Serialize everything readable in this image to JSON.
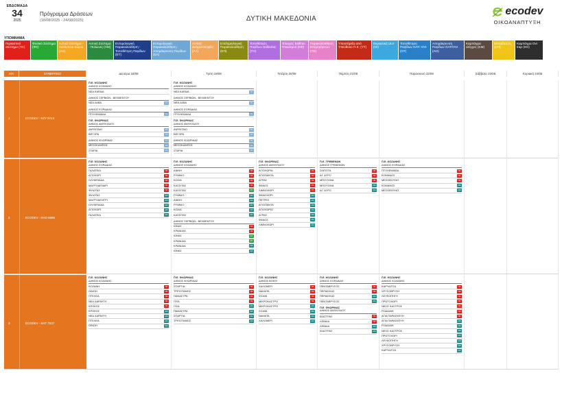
{
  "header": {
    "week_label": "ΕΒΔΟΜΑΔΑ",
    "week_number": "34",
    "year": "2025",
    "program_title": "Πρόγραμμα Δράσεων",
    "program_dates": "(18/08/2025 - 24/08/2025)",
    "region": "ΔΥΤΙΚΗ ΜΑΚΕΔΟΝΙΑ",
    "logo_word": "ecodev",
    "logo_subtitle": "ΟΙΚΟΑΝΑΠΤΥΞΗ",
    "logo_color": "#8dc63f"
  },
  "legend": {
    "title": "ΥΠΟΜΝΗΜΑ",
    "items": [
      {
        "code": "ΠΣ",
        "label": "Περιαστικό σύστημα (ΠΣ)",
        "color": "#e0201b"
      },
      {
        "code": "ΦΣ",
        "label": "Φυσικό Σύστημα (ΦΣ)",
        "color": "#2aa836"
      },
      {
        "code": "ΑΧ",
        "label": "Αστικό Σύστημα - Ακάλυπτοι Χώροι (ΑΧ)",
        "color": "#f5a623"
      },
      {
        "code": "ΑΜ",
        "label": "Αστικό Σύστημα - Πυλώνες (ΑΜ)",
        "color": "#2b8a3e"
      },
      {
        "code": "ΕΤ",
        "label": "Εντομολογική Παρακολούθηση - Τοποθέτηση Παγίδων (ΕΤ)",
        "color": "#1f3e8c"
      },
      {
        "code": "ΕΑ",
        "label": "Εντομολογική Παρακολούθηση - Απομάκρυνση Παγίδων (ΕΑ)",
        "color": "#6fa8d6"
      },
      {
        "code": "ΛΑ",
        "label": "Λοιπές Δειγματοληψίες (ΛΑ)",
        "color": "#f2a65a"
      },
      {
        "code": "ΕΠ",
        "label": "Επιδημιολογική Παρακολούθηση (ΕΠ)",
        "color": "#8a8a10"
      },
      {
        "code": "ΤΟ",
        "label": "Τοποθέτηση Παγίδων Ωοθεσίας (ΤΟ)",
        "color": "#b06ee0"
      },
      {
        "code": "ΚΦ",
        "label": "Έλεγχος Εκθέτει Ψεκασμού (ΚΦ)",
        "color": "#d07ed9"
      },
      {
        "code": "ΤΕ",
        "label": "Παρακολούθηση Επιχειρήσεων (ΤΕ)",
        "color": "#e882c8"
      },
      {
        "code": "ΥΤ",
        "label": "Υποστήριξη από Υπεύθυνο Π.Ε. (ΥΤ)",
        "color": "#c42b16"
      },
      {
        "code": "ΟΙ",
        "label": "Εκρηκτική ULV (ΟΙ)",
        "color": "#3ba9e0"
      },
      {
        "code": "ΟΤ",
        "label": "Τοποθέτηση Παγίδων GAT/ OVI (ΟΤ)",
        "color": "#2980c9"
      },
      {
        "code": "ΑΟ",
        "label": "Απομάκρυνση Παγίδων GAT/OVI (ΑΟ)",
        "color": "#3d5fa0"
      },
      {
        "code": "ΚΜ",
        "label": "Καμπάγμα ελέγχος (ΚΜ)",
        "color": "#5a4a42"
      },
      {
        "code": "ΚΠ",
        "label": "Εκπαίδευση (ΚΠ)",
        "color": "#f0c419"
      },
      {
        "code": "ΚΟ",
        "label": "Καμπάγμα Ovi trap (ΚΟ)",
        "color": "#2d2d2d"
      }
    ]
  },
  "badges": {
    "ΠΣ": "#e0201b",
    "ΑΜ": "#1e8a8a",
    "ΦΣ": "#2aa836",
    "ΤΑ": "#7fb0dc"
  },
  "table": {
    "headers": [
      "Α/Α",
      "ΣΥΝΕΡΓΕΙΟ",
      "Δευτέρα 18/08",
      "Τρίτη 19/08",
      "Τετάρτη 20/08",
      "Πέμπτη 21/08",
      "Παρασκευή 22/08",
      "Σάββατο 23/08",
      "Κυριακή 24/08"
    ],
    "rows": [
      {
        "aa": "1",
        "team": "ECODEV - ΚΖΥ 9744",
        "days": [
          [
            {
              "h1": "Π.Ε. ΚΟΖΑΝΗΣ",
              "h2": "ΔΗΜΟΣ ΚΟΖΑΝΗΣ",
              "items": [
                {
                  "t": "ΝΕΑ ΚΑΡΔΙΑ",
                  "b": ""
                },
                {
                  "t": "ΔΗΜΟΣ ΣΕΡΒΙΩΝ - ΒΕΛΒΕΝΤΟΥ",
                  "b": "",
                  "sub": true
                },
                {
                  "t": "ΝΕΑ ΛΑΒΑ",
                  "b": "ΤΑ"
                },
                {
                  "t": "ΔΗΜΟΣ ΕΟΡΔΑΙΑΣ",
                  "b": "",
                  "sub": true
                },
                {
                  "t": "ΠΤΟΛΕΜΑΪΔΑ",
                  "b": "ΤΑ"
                }
              ]
            },
            {
              "h1": "Π.Ε. ΦΛΩΡΙΝΑΣ",
              "h2": "ΔΗΜΟΣ ΑΜΥΝΤΑΙΟΥ",
              "items": [
                {
                  "t": "ΑΜΥΝΤΑΙΟ",
                  "b": "ΤΑ"
                },
                {
                  "t": "ΒΕΓΟΡΑ",
                  "b": "ΤΑ"
                },
                {
                  "t": "ΔΗΜΟΣ ΦΛΩΡΙΝΑΣ",
                  "b": "ΤΑ",
                  "sub": true
                },
                {
                  "t": "ΜΕΣΟΚΑΜΠΟΣ",
                  "b": "ΤΑ"
                },
                {
                  "t": "ΣΤΑΡΙΑ",
                  "b": "ΤΑ"
                }
              ]
            }
          ],
          [
            {
              "h1": "Π.Ε. ΚΟΖΑΝΗΣ",
              "h2": "ΔΗΜΟΣ ΚΟΖΑΝΗΣ",
              "items": [
                {
                  "t": "ΝΕΑ ΚΑΡΔΙΑ",
                  "b": "ΤΑ"
                },
                {
                  "t": "ΔΗΜΟΣ ΣΕΡΒΙΩΝ - ΒΕΛΒΕΝΤΟΥ",
                  "b": "",
                  "sub": true
                },
                {
                  "t": "ΝΕΑ ΛΑΒΑ",
                  "b": "ΤΑ"
                },
                {
                  "t": "ΔΗΜΟΣ ΕΟΡΔΑΙΑΣ",
                  "b": "",
                  "sub": true
                },
                {
                  "t": "ΠΤΟΛΕΜΑΪΔΑ",
                  "b": "ΤΑ"
                }
              ]
            },
            {
              "h1": "Π.Ε. ΦΛΩΡΙΝΑΣ",
              "h2": "ΔΗΜΟΣ ΑΜΥΝΤΑΙΟΥ",
              "items": [
                {
                  "t": "ΑΜΥΝΤΑΙΟ",
                  "b": "ΤΑ"
                },
                {
                  "t": "ΒΕΓΟΡΑ",
                  "b": "ΤΑ"
                },
                {
                  "t": "ΔΗΜΟΣ ΦΛΩΡΙΝΑΣ",
                  "b": "ΤΑ",
                  "sub": true
                },
                {
                  "t": "ΜΕΣΟΚΑΜΠΟΣ",
                  "b": "ΤΑ"
                },
                {
                  "t": "ΣΤΑΡΙΑ",
                  "b": "ΤΑ"
                }
              ]
            }
          ],
          [],
          [],
          [],
          [],
          []
        ]
      },
      {
        "aa": "2",
        "team": "ECODEV - ΚΗΟ 8695",
        "days": [
          [
            {
              "h1": "Π.Ε. ΚΟΖΑΝΗΣ",
              "h2": "ΔΗΜΟΣ ΕΟΡΔΑΙΑΣ",
              "items": [
                {
                  "t": "ΓΑΛΑΤΕΙΑ",
                  "b": "ΠΣ"
                },
                {
                  "t": "ΑΓΙΟΧΩΡΙ",
                  "b": "ΠΣ"
                },
                {
                  "t": "ΟΛΥΜΠΙΑΔΑ",
                  "b": "ΠΣ"
                },
                {
                  "t": "ΜΑΥΡΟΔΕΝΔΡΙ",
                  "b": "ΠΣ"
                },
                {
                  "t": "ΦΙΛΩΤΑΣ",
                  "b": "ΠΣ"
                },
                {
                  "t": "ΦΙΛΩΤΑΣ",
                  "b": "ΑΜ"
                },
                {
                  "t": "ΜΑΥΡΟΔΕΝΤΡΙ",
                  "b": "ΑΜ"
                },
                {
                  "t": "ΟΛΥΜΠΙΑΔΑ",
                  "b": "ΑΜ"
                },
                {
                  "t": "ΑΓΙΟΧΩΡΙ",
                  "b": "ΑΜ"
                },
                {
                  "t": "ΓΑΛΑΤΕΙΑ",
                  "b": "ΑΜ"
                }
              ]
            }
          ],
          [
            {
              "h1": "Π.Ε. ΚΟΖΑΝΗΣ",
              "h2": "ΔΗΜΟΣ ΚΟΖΑΝΗΣ",
              "items": [
                {
                  "t": "ΑΙΑΝΗ",
                  "b": "ΠΣ"
                },
                {
                  "t": "ΡΥΜΝΙΟ",
                  "b": "ΠΣ"
                },
                {
                  "t": "ΚΟΙΛΑ",
                  "b": "ΠΣ"
                },
                {
                  "t": "ΚΑΣΣΙΤΑΣ",
                  "b": "ΠΣ"
                },
                {
                  "t": "ΚΑΣΣΙΤΑΣ",
                  "b": "ΦΣ"
                },
                {
                  "t": "ΡΥΜΝΙΟ",
                  "b": "ΑΜ"
                },
                {
                  "t": "ΑΙΑΝΗ",
                  "b": "ΑΜ"
                },
                {
                  "t": "ΡΥΜΝΙΟ",
                  "b": "ΑΜ"
                },
                {
                  "t": "ΚΟΙΛΑ",
                  "b": "ΑΜ"
                },
                {
                  "t": "ΚΑΣΣΙΤΑΣ",
                  "b": "ΑΜ"
                },
                {
                  "t": "ΔΗΜΟΣ ΣΕΡΒΙΩΝ - ΒΕΛΒΕΝΤΟΥ",
                  "b": "",
                  "sub": true
                },
                {
                  "t": "ΙΩΝΑΣ",
                  "b": "ΠΣ"
                },
                {
                  "t": "ΚΡΑΝΙΔΙΑ",
                  "b": "ΠΣ"
                },
                {
                  "t": "ΙΩΝΑΣ",
                  "b": "ΦΣ"
                },
                {
                  "t": "ΚΡΑΝΙΔΙΑ",
                  "b": "ΦΣ"
                },
                {
                  "t": "ΚΡΑΝΙΔΙΑ",
                  "b": "ΑΜ"
                },
                {
                  "t": "ΙΩΝΑΣ",
                  "b": "ΑΜ"
                }
              ]
            }
          ],
          [
            {
              "h1": "Π.Ε. ΦΛΩΡΙΝΑΣ",
              "h2": "ΔΗΜΟΣ ΑΜΥΝΤΑΙΟΥ",
              "items": [
                {
                  "t": "ΑΓΙΟΧΩΡΙΑ",
                  "b": "ΠΣ"
                },
                {
                  "t": "ΑΓΙΟΠΑΝΤΑ",
                  "b": "ΠΣ"
                },
                {
                  "t": "ΑΓΡΑΣ",
                  "b": "ΠΣ"
                },
                {
                  "t": "ΦΑΝΟΣ",
                  "b": "ΠΣ"
                },
                {
                  "t": "ΛΙΜΝΟΧΩΡΙ",
                  "b": "ΠΣ"
                },
                {
                  "t": "ΦΑΝΟΧΩΡΙ",
                  "b": "ΑΜ"
                },
                {
                  "t": "ΠΕΤΡΕΣ",
                  "b": "ΑΜ"
                },
                {
                  "t": "ΑΓΙΟΠΑΝΤΑ",
                  "b": "ΑΜ"
                },
                {
                  "t": "ΑΓΙΟΧΩΡΙΟ",
                  "b": "ΑΜ"
                },
                {
                  "t": "ΑΓΡΑΣ",
                  "b": "ΑΜ"
                },
                {
                  "t": "ΦΑΝΟΣ",
                  "b": "ΑΜ"
                },
                {
                  "t": "ΛΙΜΝΟΧΩΡΙ",
                  "b": "ΑΜ"
                }
              ]
            }
          ],
          [
            {
              "h1": "Π.Ε. ΓΡΕΒΕΝΩΝ",
              "h2": "ΔΗΜΟΣ ΓΡΕΒΕΝΩΝ",
              "items": [
                {
                  "t": "ΣΙΑΤΙΣΤΑ",
                  "b": "ΠΣ"
                },
                {
                  "t": "ΑΓ. ΑΓΡΟ",
                  "b": "ΠΣ"
                },
                {
                  "t": "ΜΠΟΥΣΙΝΑ",
                  "b": "ΠΣ"
                },
                {
                  "t": "ΜΠΟΥΣΙΝΑ",
                  "b": "ΑΜ"
                },
                {
                  "t": "ΑΓ. ΑΓΡΟ",
                  "b": "ΑΜ"
                }
              ]
            }
          ],
          [
            {
              "h1": "Π.Ε. ΚΟΖΑΝΗΣ",
              "h2": "ΔΗΜΟΣ ΕΟΡΔΑΙΑΣ",
              "items": [
                {
                  "t": "ΠΤΟΛΕΜΑΪΔΑ",
                  "b": "ΠΣ"
                },
                {
                  "t": "ΚΟΜΑΝΟΣ",
                  "b": "ΠΣ"
                },
                {
                  "t": "ΜΕΣΟΒΟΥΝΟ",
                  "b": "ΠΣ"
                },
                {
                  "t": "ΚΟΜΑΝΟΣ",
                  "b": "ΑΜ"
                },
                {
                  "t": "ΜΕΣΟΒΟΥΝΟ",
                  "b": "ΑΜ"
                }
              ]
            }
          ],
          [],
          []
        ]
      },
      {
        "aa": "3",
        "team": "ECODEV - ΚΗΤ 7037",
        "days": [
          [
            {
              "h1": "Π.Ε. ΚΟΖΑΝΗΣ",
              "h2": "ΔΗΜΟΣ ΚΟΖΑΝΗΣ",
              "items": [
                {
                  "t": "ΚΟΖΑΝΗ",
                  "b": "ΠΣ"
                },
                {
                  "t": "ΟΙΝΟΗ",
                  "b": "ΠΣ"
                },
                {
                  "t": "ΠΤΕΛΕΑ",
                  "b": "ΠΣ"
                },
                {
                  "t": "ΝΕΑ ΧΑΡΑΥΓΗ",
                  "b": "ΠΣ"
                },
                {
                  "t": "ΚΡΟΚΟΣ",
                  "b": "ΠΣ"
                },
                {
                  "t": "ΚΡΟΚΟΣ",
                  "b": "ΑΜ"
                },
                {
                  "t": "ΝΕΑ ΧΑΡΑΥΓΗ",
                  "b": "ΑΜ"
                },
                {
                  "t": "ΠΤΕΛΕΑ",
                  "b": "ΑΜ"
                },
                {
                  "t": "ΟΙΝΟΗ",
                  "b": "ΑΜ"
                }
              ]
            }
          ],
          [
            {
              "h1": "Π.Ε. ΦΛΩΡΙΝΑΣ",
              "h2": "ΔΗΜΟΣ ΦΛΩΡΙΝΑΣ",
              "items": [
                {
                  "t": "ΣΠΑΡΤΙΑ",
                  "b": "ΠΣ"
                },
                {
                  "t": "ΤΡΙΠΟΤΑΜΟΣ",
                  "b": "ΠΣ"
                },
                {
                  "t": "ΠΑΝΑΣΤΡΑ",
                  "b": "ΠΣ"
                },
                {
                  "t": "ΙΤΕΑ",
                  "b": "ΠΣ"
                },
                {
                  "t": "ΙΤΕΑ",
                  "b": "ΑΜ"
                },
                {
                  "t": "ΠΑΝΑΣΤΡΑ",
                  "b": "ΑΜ"
                },
                {
                  "t": "ΣΠΑΡΤΙΑ",
                  "b": "ΑΜ"
                },
                {
                  "t": "ΤΡΙΠΟΤΑΜΟΣ",
                  "b": "ΑΜ"
                }
              ]
            }
          ],
          [
            {
              "h1": "Π.Ε. ΚΟΖΑΝΗΣ",
              "h2": "ΔΗΜΟΣ ΒΟΪΟΥ",
              "items": [
                {
                  "t": "ΧΑΛΟΝΕΡΙ",
                  "b": "ΠΣ"
                },
                {
                  "t": "ΝΑΜΑΤΑ",
                  "b": "ΠΣ"
                },
                {
                  "t": "ΣΙΣΑΝΙ",
                  "b": "ΠΣ"
                },
                {
                  "t": "ΜΙΚΡΟΚΑΣΤΡΟ",
                  "b": "ΠΣ"
                },
                {
                  "t": "ΜΙΚΡΟΚΑΣΤΡΟ",
                  "b": "ΑΜ"
                },
                {
                  "t": "ΣΙΣΑΝΙ",
                  "b": "ΑΜ"
                },
                {
                  "t": "ΝΑΜΑΤΑ",
                  "b": "ΑΜ"
                },
                {
                  "t": "ΧΑΛΟΝΕΡΙ",
                  "b": "ΑΜ"
                }
              ]
            }
          ],
          [
            {
              "h1": "Π.Ε. ΚΟΖΑΝΗΣ",
              "h2": "ΔΗΜΟΣ ΕΟΡΔΑΙΑΣ",
              "items": [
                {
                  "t": "ΠΕΝΤΑΒΡΥΣΟΣ",
                  "b": "ΠΣ"
                },
                {
                  "t": "ΠΕΡΔΙΚΚΑΣ",
                  "b": "ΠΣ"
                },
                {
                  "t": "ΠΕΡΔΙΚΚΑΣ",
                  "b": "ΑΜ"
                },
                {
                  "t": "ΠΕΝΤΑΒΡΥΣΟΣ",
                  "b": "ΑΜ"
                }
              ]
            },
            {
              "h1": "Π.Ε. ΦΛΩΡΙΝΑΣ",
              "h2": "ΔΗΜΟΣ ΑΜΥΝΤΑΙΟΥ",
              "items": [
                {
                  "t": "ΙΚΑΣΤΡΑΣ",
                  "b": "ΠΣ"
                },
                {
                  "t": "ΛΕΒΑΙΑ",
                  "b": "ΠΣ"
                },
                {
                  "t": "ΛΕΒΑΙΑ",
                  "b": "ΑΜ"
                },
                {
                  "t": "ΙΚΑΣΤΡΑΣ",
                  "b": "ΑΜ"
                }
              ]
            }
          ],
          [
            {
              "h1": "Π.Ε. ΚΟΖΑΝΗΣ",
              "h2": "ΔΗΜΟΣ ΚΟΖΑΝΗΣ",
              "items": [
                {
                  "t": "ΚΑΡΥΔΙΤΣΑ",
                  "b": "ΠΣ"
                },
                {
                  "t": "ΧΡΥΣΟΒΡΥΣΗ",
                  "b": "ΠΣ"
                },
                {
                  "t": "ΛΕΥΚΟΠΗΓΗ",
                  "b": "ΠΣ"
                },
                {
                  "t": "ΠΡΩΤΟΧΩΡΙ",
                  "b": "ΠΣ"
                },
                {
                  "t": "ΝΕΟΣ ΚΑΣΤΡΟΣ",
                  "b": "ΠΣ"
                },
                {
                  "t": "ΡΟΔΙΑΝΗ",
                  "b": "ΠΣ"
                },
                {
                  "t": "ΑΓΙΑ ΠΑΡΑΣΚΕΥΗ",
                  "b": "ΠΣ"
                },
                {
                  "t": "ΑΓΙΑ ΠΑΡΑΣΚΕΥΗ",
                  "b": "ΑΜ"
                },
                {
                  "t": "ΡΟΔΙΑΝΗ",
                  "b": "ΑΜ"
                },
                {
                  "t": "ΝΕΟΣ ΚΑΣΤΡΟΣ",
                  "b": "ΑΜ"
                },
                {
                  "t": "ΠΡΩΤΟΧΩΡΙ",
                  "b": "ΑΜ"
                },
                {
                  "t": "ΛΕΥΚΟΠΗΓΗ",
                  "b": "ΑΜ"
                },
                {
                  "t": "ΧΡΥΣΟΒΡΥΣΗ",
                  "b": "ΑΜ"
                },
                {
                  "t": "ΚΑΡΥΔΙΤΣΑ",
                  "b": "ΑΜ"
                }
              ]
            }
          ],
          [],
          []
        ]
      }
    ]
  }
}
